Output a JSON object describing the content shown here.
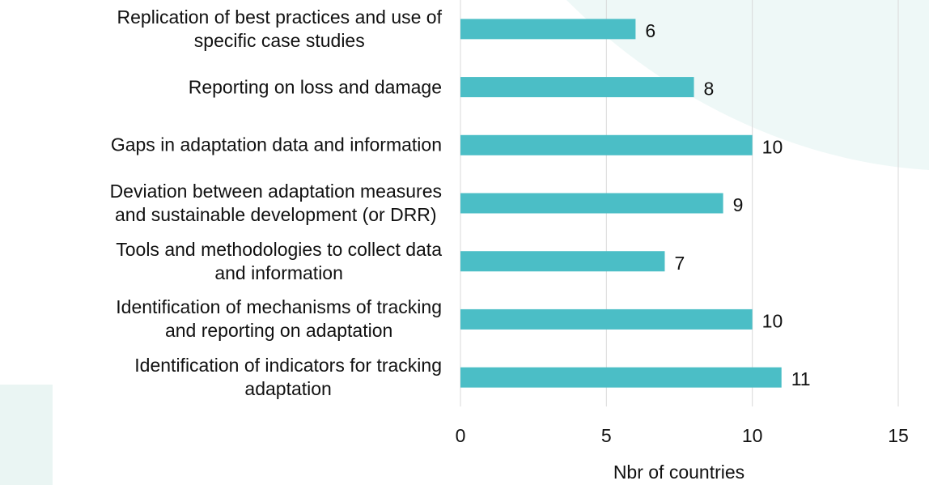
{
  "chart_data": {
    "type": "barh",
    "categories": [
      "Replication of best practices and use of\nspecific case studies",
      "Reporting on loss and damage",
      "Gaps in adaptation data and information",
      "Deviation between adaptation measures\nand sustainable development (or DRR)",
      "Tools and methodologies to collect data\nand information",
      "Identification of mechanisms of tracking\nand reporting on adaptation",
      "Identification of indicators for tracking\nadaptation"
    ],
    "values": [
      6,
      8,
      10,
      9,
      7,
      10,
      11
    ],
    "color": "#4bbec6",
    "xlabel": "Nbr of countries",
    "xlim": [
      0,
      15
    ],
    "xticks": [
      0,
      5,
      10,
      15
    ],
    "grid": true
  }
}
